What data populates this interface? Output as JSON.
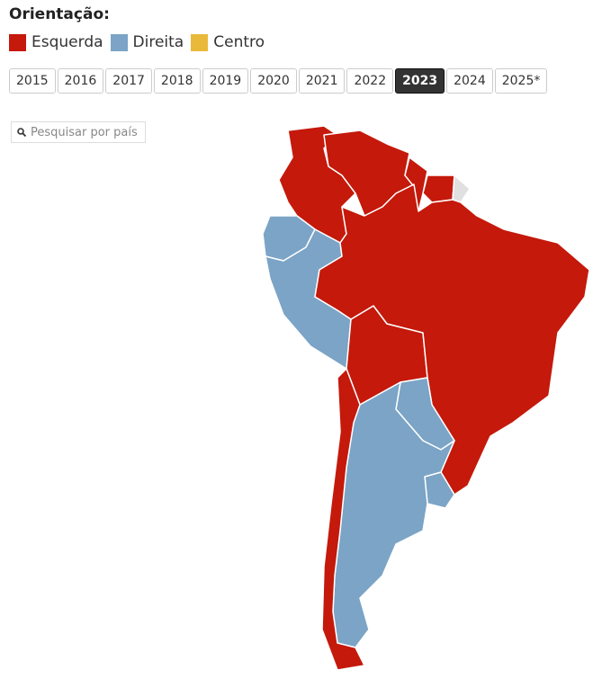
{
  "header": {
    "title": "Orientação:"
  },
  "legend": [
    {
      "label": "Esquerda",
      "color": "#c4190b"
    },
    {
      "label": "Direita",
      "color": "#7ba4c6"
    },
    {
      "label": "Centro",
      "color": "#e8b93a"
    }
  ],
  "years": [
    {
      "label": "2015"
    },
    {
      "label": "2016"
    },
    {
      "label": "2017"
    },
    {
      "label": "2018"
    },
    {
      "label": "2019"
    },
    {
      "label": "2020"
    },
    {
      "label": "2021"
    },
    {
      "label": "2022"
    },
    {
      "label": "2023",
      "selected": true
    },
    {
      "label": "2024"
    },
    {
      "label": "2025*"
    }
  ],
  "search": {
    "placeholder": "Pesquisar por país"
  }
}
